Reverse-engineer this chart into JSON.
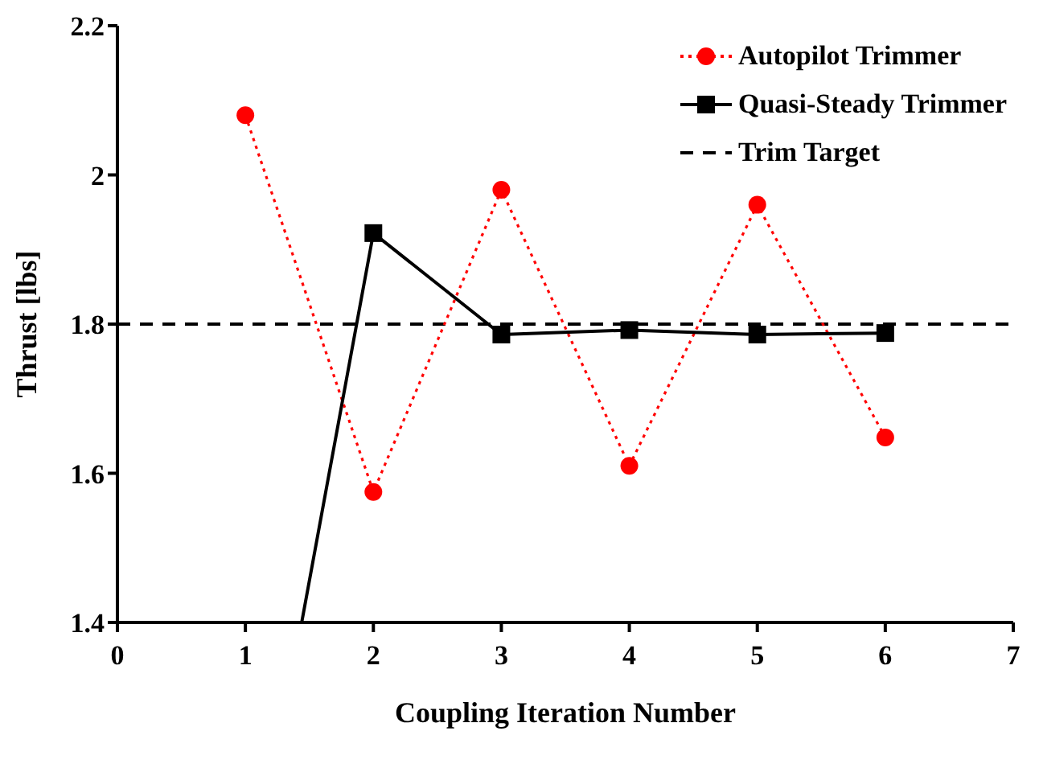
{
  "chart_data": {
    "type": "line",
    "xlabel": "Coupling Iteration Number",
    "ylabel": "Thrust [lbs]",
    "xlim": [
      0,
      7
    ],
    "xticks": [
      0,
      1,
      2,
      3,
      4,
      5,
      6,
      7
    ],
    "ylim": [
      1.4,
      2.2
    ],
    "yticks": [
      1.4,
      1.6,
      1.8,
      2,
      2.2
    ],
    "grid": false,
    "legend": "top right",
    "series": [
      {
        "name": "Autopilot Trimmer",
        "color": "#ff0000",
        "marker": "circle",
        "line_style": "dotted",
        "x": [
          1,
          2,
          3,
          4,
          5,
          6
        ],
        "values": [
          2.08,
          1.575,
          1.98,
          1.61,
          1.96,
          1.648
        ]
      },
      {
        "name": "Quasi-Steady Trimmer",
        "color": "#000000",
        "marker": "square",
        "line_style": "solid",
        "x": [
          1.44,
          2,
          3,
          4,
          5,
          6
        ],
        "values": [
          1.4,
          1.922,
          1.786,
          1.792,
          1.786,
          1.788
        ]
      }
    ],
    "ref_lines": [
      {
        "axis": "y",
        "value": 1.8,
        "label": "Trim Target",
        "color": "#000000",
        "line_style": "dashed"
      }
    ]
  }
}
